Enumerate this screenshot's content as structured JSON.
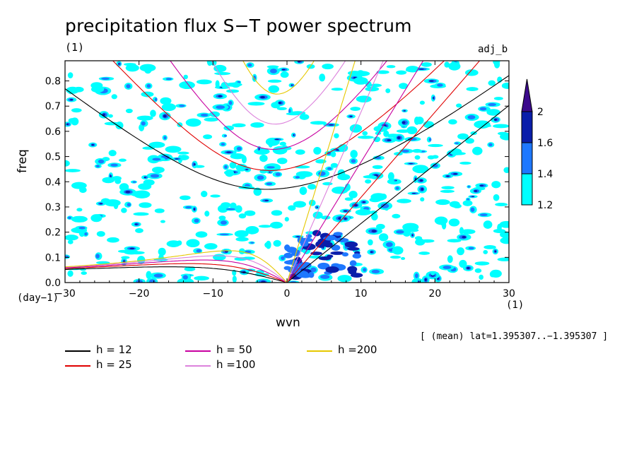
{
  "title": "precipitation flux S−T power spectrum",
  "units_top": "(1)",
  "tag": "adj_b",
  "mean_lat": "[ (mean) lat=1.395307..−1.395307 ]",
  "chart_data": {
    "type": "heatmap",
    "title": "precipitation flux S−T power spectrum",
    "xlabel": "wvn",
    "ylabel": "freq",
    "xunits": "(1)",
    "yunits": "(day−1)",
    "xlim": [
      -30,
      30
    ],
    "ylim": [
      0.0,
      0.88
    ],
    "xticks": [
      "−30",
      "−20",
      "−10",
      "0",
      "10",
      "20",
      "30"
    ],
    "xtick_values": [
      -30,
      -20,
      -10,
      0,
      10,
      20,
      30
    ],
    "yticks": [
      "0.0",
      "0.1",
      "0.2",
      "0.3",
      "0.4",
      "0.5",
      "0.6",
      "0.7",
      "0.8"
    ],
    "ytick_values": [
      0.0,
      0.1,
      0.2,
      0.3,
      0.4,
      0.5,
      0.6,
      0.7,
      0.8
    ],
    "colorbar": {
      "levels": [
        1.2,
        1.4,
        1.6,
        2
      ],
      "labels": [
        "1.2",
        "1.4",
        "1.6",
        "2"
      ],
      "colors": [
        "#00ffff",
        "#1e78ff",
        "#0a1eaa",
        "#3c0a8c"
      ]
    },
    "dispersion_curves": [
      {
        "name": "h = 12",
        "h": 12,
        "color": "#000000"
      },
      {
        "name": "h = 25",
        "h": 25,
        "color": "#e00000"
      },
      {
        "name": "h = 50",
        "h": 50,
        "color": "#c800a0"
      },
      {
        "name": "h =100",
        "h": 100,
        "color": "#dc82dc"
      },
      {
        "name": "h =200",
        "h": 200,
        "color": "#e6c800"
      }
    ]
  }
}
